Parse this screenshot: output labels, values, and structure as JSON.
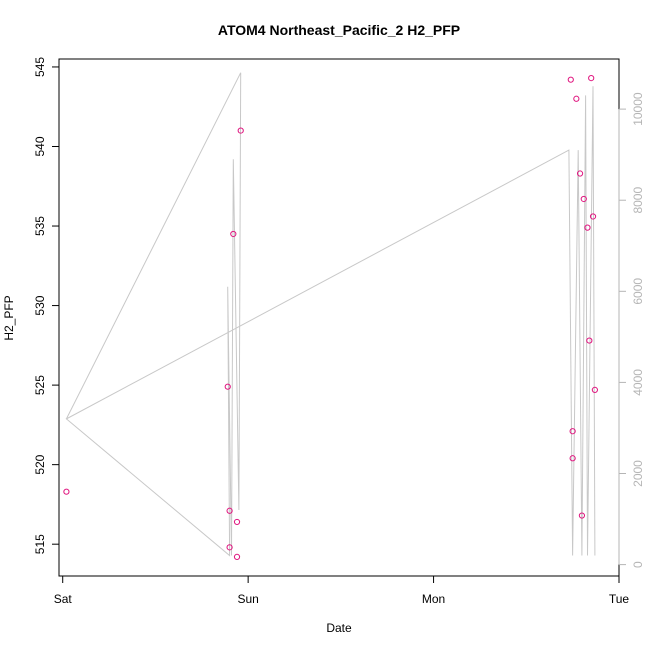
{
  "chart_data": {
    "type": "scatter",
    "title": "ATOM4 Northeast_Pacific_2 H2_PFP",
    "xlabel": "Date",
    "ylabel": "H2_PFP",
    "x_tick_labels": [
      "Sat",
      "Sun",
      "Mon",
      "Tue"
    ],
    "xlim_days": [
      -0.02,
      3.0
    ],
    "ylim": [
      513,
      545.5
    ],
    "y_ticks": [
      515,
      520,
      525,
      530,
      535,
      540,
      545
    ],
    "y2lim": [
      -250,
      11100
    ],
    "y2_ticks": [
      0,
      2000,
      4000,
      6000,
      8000,
      10000
    ],
    "grid": false,
    "point_color": "#e0157f",
    "line_color": "#c8c8c8",
    "series": [
      {
        "axis": "left",
        "style": "points",
        "points": [
          {
            "x": 0.02,
            "y": 518.3
          },
          {
            "x": 0.89,
            "y": 524.9
          },
          {
            "x": 0.9,
            "y": 517.1
          },
          {
            "x": 0.9,
            "y": 514.8
          },
          {
            "x": 0.92,
            "y": 534.5
          },
          {
            "x": 0.94,
            "y": 516.4
          },
          {
            "x": 0.94,
            "y": 514.2
          },
          {
            "x": 0.96,
            "y": 541.0
          },
          {
            "x": 2.74,
            "y": 544.2
          },
          {
            "x": 2.75,
            "y": 522.1
          },
          {
            "x": 2.75,
            "y": 520.4
          },
          {
            "x": 2.77,
            "y": 543.0
          },
          {
            "x": 2.79,
            "y": 538.3
          },
          {
            "x": 2.8,
            "y": 516.8
          },
          {
            "x": 2.81,
            "y": 536.7
          },
          {
            "x": 2.83,
            "y": 534.9
          },
          {
            "x": 2.84,
            "y": 527.8
          },
          {
            "x": 2.85,
            "y": 544.3
          },
          {
            "x": 2.86,
            "y": 535.6
          },
          {
            "x": 2.87,
            "y": 524.7
          }
        ]
      },
      {
        "axis": "right",
        "style": "line",
        "points": [
          {
            "x": 0.02,
            "y": 3200
          },
          {
            "x": 0.96,
            "y": 10800
          },
          {
            "x": 0.95,
            "y": 1200
          },
          {
            "x": 0.92,
            "y": 8900
          },
          {
            "x": 0.91,
            "y": 200
          },
          {
            "x": 0.89,
            "y": 6100
          },
          {
            "x": 0.9,
            "y": 200
          },
          {
            "x": 0.02,
            "y": 3200
          },
          {
            "x": 2.73,
            "y": 9100
          },
          {
            "x": 2.75,
            "y": 200
          },
          {
            "x": 2.78,
            "y": 9100
          },
          {
            "x": 2.8,
            "y": 200
          },
          {
            "x": 2.82,
            "y": 10300
          },
          {
            "x": 2.83,
            "y": 200
          },
          {
            "x": 2.86,
            "y": 10500
          },
          {
            "x": 2.87,
            "y": 200
          }
        ]
      }
    ]
  }
}
